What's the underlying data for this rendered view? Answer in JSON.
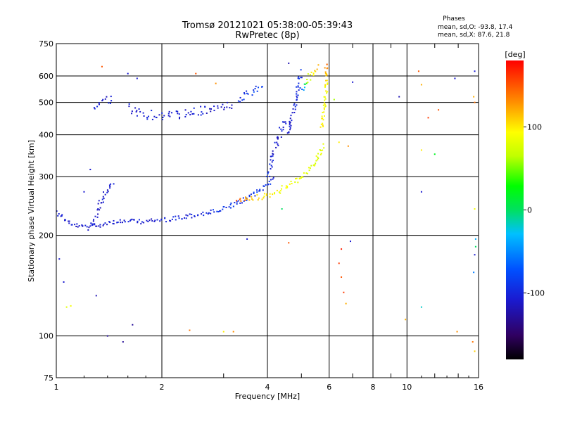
{
  "chart_data": {
    "type": "scatter",
    "title": "Tromsø 20121021 05:38:00-05:39:43",
    "subtitle": "RwPretec (8p)",
    "xlabel": "Frequency [MHz]",
    "ylabel": "Stationary phase Virtual Height [km]",
    "x_scale": "log",
    "y_scale": "log",
    "xlim": [
      1,
      16
    ],
    "ylim": [
      75,
      750
    ],
    "x_ticks": [
      1,
      2,
      4,
      6,
      8,
      10,
      16
    ],
    "x_tick_labels": [
      "1",
      "2",
      "4",
      "6",
      "8",
      "10",
      "16"
    ],
    "y_ticks": [
      75,
      100,
      200,
      300,
      400,
      500,
      600,
      750
    ],
    "y_tick_labels": [
      "75",
      "100",
      "200",
      "300",
      "400",
      "500",
      "600",
      "750"
    ],
    "grid": true,
    "stats": {
      "heading": "Phases",
      "line_o": "mean, sd,O: -93.8, 17.4",
      "line_x": "mean, sd,X: 87.6, 21.8"
    },
    "colorbar": {
      "label": "[deg]",
      "min": -180,
      "max": 180,
      "ticks": [
        100,
        0,
        -100
      ],
      "tick_labels": [
        "100",
        "0",
        "-100"
      ]
    },
    "traces": [
      {
        "x": [
          1.0,
          1.05,
          1.1,
          1.2,
          1.3,
          1.4,
          1.5,
          1.6,
          1.8,
          2.0,
          2.2,
          2.5,
          2.8,
          3.0,
          3.3,
          3.6,
          3.9,
          4.2
        ],
        "y": [
          235,
          225,
          215,
          212,
          214,
          218,
          220,
          220,
          220,
          222,
          225,
          230,
          235,
          240,
          250,
          262,
          278,
          300
        ],
        "phase": [
          -110,
          -110,
          -110,
          -110,
          -110,
          -110,
          -110,
          -110,
          -110,
          -110,
          -105,
          -105,
          -100,
          -100,
          -95,
          -95,
          -100,
          -100
        ],
        "spread": 4
      },
      {
        "x": [
          1.25,
          1.3,
          1.35,
          1.4,
          1.45
        ],
        "y": [
          210,
          230,
          255,
          275,
          290
        ],
        "phase": [
          -110,
          -110,
          -110,
          -110,
          -110
        ],
        "spread": 6
      },
      {
        "x": [
          1.6,
          1.7,
          1.8,
          2.0,
          2.3,
          2.6,
          3.0,
          3.2
        ],
        "y": [
          480,
          470,
          460,
          455,
          460,
          470,
          485,
          495
        ],
        "phase": [
          -110,
          -110,
          -110,
          -110,
          -110,
          -110,
          -110,
          -105
        ],
        "spread": 8
      },
      {
        "x": [
          3.3,
          3.5,
          3.7,
          3.9
        ],
        "y": [
          505,
          525,
          545,
          560
        ],
        "phase": [
          -100,
          -95,
          -90,
          -90
        ],
        "spread": 6
      },
      {
        "x": [
          1.3,
          1.35,
          1.4,
          1.45
        ],
        "y": [
          480,
          500,
          510,
          515
        ],
        "phase": [
          -110,
          -110,
          -110,
          -110
        ],
        "spread": 8
      },
      {
        "x": [
          3.3,
          3.6,
          3.9,
          4.2,
          4.4,
          4.6,
          4.8,
          5.0,
          5.2,
          5.4,
          5.6,
          5.8
        ],
        "y": [
          255,
          258,
          262,
          268,
          275,
          282,
          290,
          300,
          310,
          325,
          345,
          375
        ],
        "phase": [
          150,
          120,
          100,
          95,
          90,
          90,
          85,
          85,
          80,
          80,
          85,
          90
        ],
        "spread": 5
      },
      {
        "x": [
          5.7,
          5.8,
          5.85,
          5.9,
          5.9,
          5.9,
          5.85
        ],
        "y": [
          420,
          470,
          520,
          560,
          600,
          630,
          650
        ],
        "phase": [
          100,
          90,
          90,
          95,
          110,
          130,
          150
        ],
        "spread": 4
      },
      {
        "x": [
          4.0,
          4.1,
          4.2,
          4.3,
          4.4,
          4.5
        ],
        "y": [
          300,
          330,
          360,
          390,
          420,
          450
        ],
        "phase": [
          -100,
          -105,
          -110,
          -110,
          -110,
          -110
        ],
        "spread": 6
      },
      {
        "x": [
          4.6,
          4.7,
          4.8,
          4.9,
          5.0
        ],
        "y": [
          400,
          450,
          500,
          560,
          620
        ],
        "phase": [
          -110,
          -110,
          -105,
          -100,
          -95
        ],
        "spread": 6
      },
      {
        "x": [
          5.0,
          5.2,
          5.4,
          5.6
        ],
        "y": [
          550,
          580,
          610,
          640
        ],
        "phase": [
          -80,
          60,
          100,
          120
        ],
        "spread": 6
      }
    ],
    "scatter_points": [
      {
        "x": 1.02,
        "y": 170,
        "phase": -110
      },
      {
        "x": 1.05,
        "y": 145,
        "phase": -110
      },
      {
        "x": 1.07,
        "y": 122,
        "phase": 80
      },
      {
        "x": 1.1,
        "y": 123,
        "phase": 90
      },
      {
        "x": 1.2,
        "y": 270,
        "phase": -110
      },
      {
        "x": 1.25,
        "y": 315,
        "phase": -110
      },
      {
        "x": 1.3,
        "y": 132,
        "phase": -120
      },
      {
        "x": 1.35,
        "y": 640,
        "phase": 150
      },
      {
        "x": 1.4,
        "y": 100,
        "phase": -130
      },
      {
        "x": 1.55,
        "y": 96,
        "phase": -130
      },
      {
        "x": 1.65,
        "y": 108,
        "phase": -130
      },
      {
        "x": 1.7,
        "y": 590,
        "phase": -110
      },
      {
        "x": 1.6,
        "y": 610,
        "phase": -110
      },
      {
        "x": 2.4,
        "y": 104,
        "phase": 140
      },
      {
        "x": 2.5,
        "y": 610,
        "phase": 150
      },
      {
        "x": 3.2,
        "y": 103,
        "phase": 130
      },
      {
        "x": 3.0,
        "y": 103,
        "phase": 100
      },
      {
        "x": 2.85,
        "y": 570,
        "phase": 130
      },
      {
        "x": 3.5,
        "y": 195,
        "phase": -110
      },
      {
        "x": 4.4,
        "y": 240,
        "phase": 0
      },
      {
        "x": 4.6,
        "y": 190,
        "phase": 150
      },
      {
        "x": 6.4,
        "y": 165,
        "phase": 160
      },
      {
        "x": 6.5,
        "y": 150,
        "phase": 150
      },
      {
        "x": 6.6,
        "y": 135,
        "phase": 160
      },
      {
        "x": 6.5,
        "y": 182,
        "phase": 170
      },
      {
        "x": 6.9,
        "y": 192,
        "phase": -110
      },
      {
        "x": 6.7,
        "y": 125,
        "phase": 120
      },
      {
        "x": 7.0,
        "y": 575,
        "phase": -110
      },
      {
        "x": 6.2,
        "y": 510,
        "phase": 60
      },
      {
        "x": 6.4,
        "y": 380,
        "phase": 100
      },
      {
        "x": 6.8,
        "y": 370,
        "phase": 130
      },
      {
        "x": 9.5,
        "y": 520,
        "phase": -120
      },
      {
        "x": 9.9,
        "y": 112,
        "phase": 120
      },
      {
        "x": 10.8,
        "y": 620,
        "phase": 150
      },
      {
        "x": 11.0,
        "y": 565,
        "phase": 120
      },
      {
        "x": 11.5,
        "y": 450,
        "phase": 160
      },
      {
        "x": 12.3,
        "y": 475,
        "phase": 150
      },
      {
        "x": 12.0,
        "y": 350,
        "phase": 20
      },
      {
        "x": 11.0,
        "y": 360,
        "phase": 100
      },
      {
        "x": 11.0,
        "y": 270,
        "phase": -110
      },
      {
        "x": 11.0,
        "y": 122,
        "phase": -20
      },
      {
        "x": 13.7,
        "y": 590,
        "phase": -110
      },
      {
        "x": 13.9,
        "y": 103,
        "phase": 130
      },
      {
        "x": 15.6,
        "y": 620,
        "phase": -110
      },
      {
        "x": 15.5,
        "y": 520,
        "phase": 120
      },
      {
        "x": 15.6,
        "y": 500,
        "phase": 140
      },
      {
        "x": 15.6,
        "y": 240,
        "phase": 90
      },
      {
        "x": 15.7,
        "y": 195,
        "phase": -40
      },
      {
        "x": 15.7,
        "y": 185,
        "phase": 0
      },
      {
        "x": 15.6,
        "y": 175,
        "phase": -110
      },
      {
        "x": 15.5,
        "y": 155,
        "phase": -60
      },
      {
        "x": 15.6,
        "y": 90,
        "phase": 110
      },
      {
        "x": 15.4,
        "y": 96,
        "phase": 140
      },
      {
        "x": 4.6,
        "y": 655,
        "phase": -120
      }
    ]
  }
}
